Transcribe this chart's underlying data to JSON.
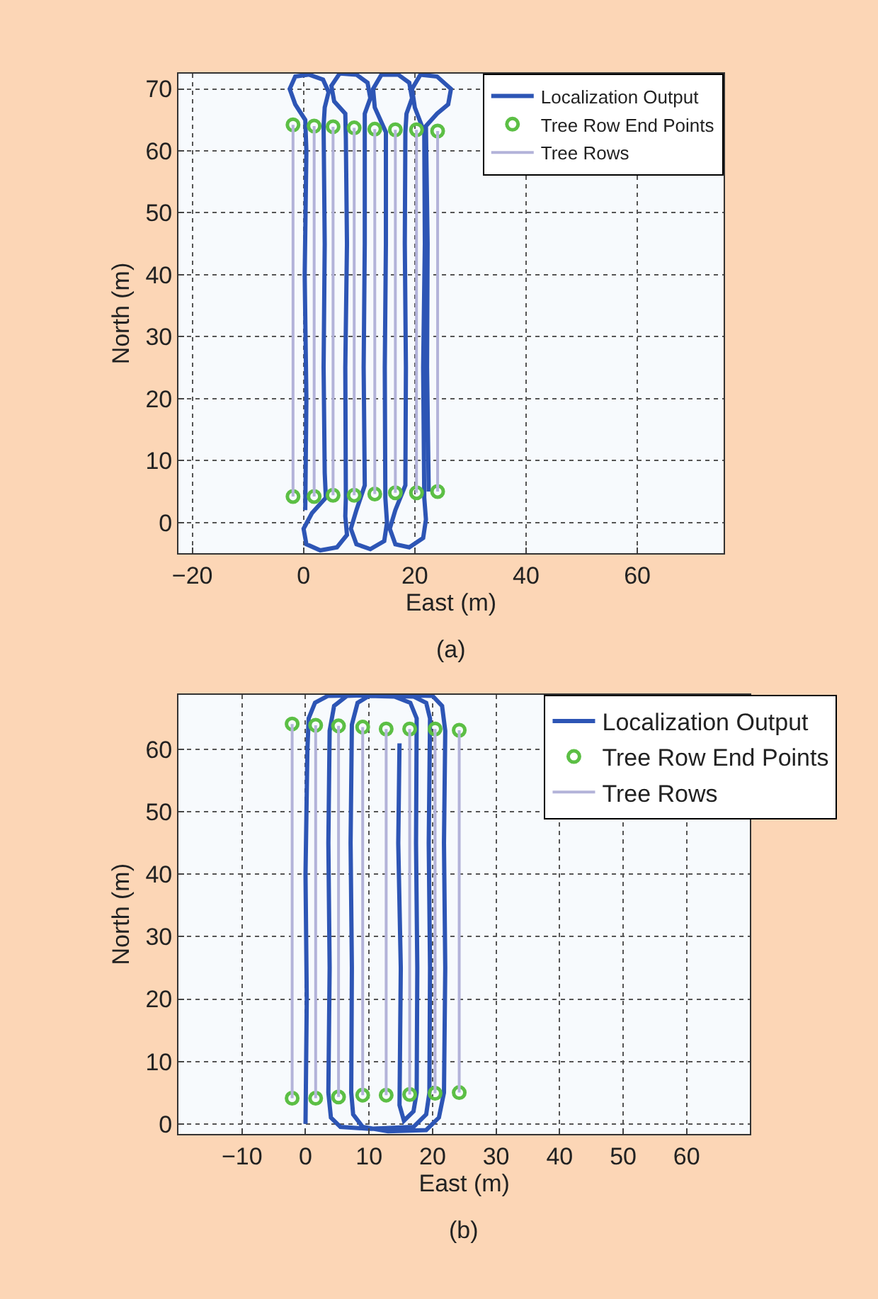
{
  "chart_data": [
    {
      "type": "line",
      "xlabel": "East (m)",
      "ylabel": "North (m)",
      "annotations": [
        "(a)"
      ],
      "xlim": [
        -22.5,
        75.5
      ],
      "ylim": [
        -5,
        72.5
      ],
      "xticks": [
        {
          "value": -20,
          "label": "−20"
        },
        0,
        20,
        40,
        60
      ],
      "yticks": [
        0,
        10,
        20,
        30,
        40,
        50,
        60,
        70
      ],
      "grid": true,
      "legend": "top right",
      "series": [
        {
          "name": "Localization Output",
          "color": "#2d55b5",
          "x": [
            0.3,
            0.5,
            0.2,
            0.5,
            0.3,
            -1.5,
            -2.5,
            -1.5,
            1,
            3.5,
            4.5,
            3.8,
            3.6,
            3.8,
            3.6,
            3.8,
            4,
            1.5,
            0,
            0.5,
            3,
            6,
            7.8,
            7.5,
            7.6,
            7.5,
            7.8,
            7.6,
            7.5,
            5.5,
            5,
            6.5,
            9.5,
            11.5,
            12,
            11,
            11,
            11,
            10.8,
            11,
            9.5,
            8.5,
            9.5,
            12,
            14.5,
            15,
            14.7,
            14.6,
            14.8,
            14.8,
            12.8,
            12.5,
            14,
            17,
            19,
            19.5,
            18.5,
            18.3,
            18.2,
            18.4,
            18.3,
            16.5,
            15.5,
            16.5,
            19,
            21.5,
            22,
            21.7,
            21.5,
            21.8,
            21.7,
            20,
            19.5,
            21,
            24,
            26.5,
            26,
            24,
            22,
            22.3,
            22.2,
            22.5
          ],
          "values": [
            2,
            20,
            40,
            60,
            65,
            67.5,
            70,
            72,
            72.3,
            71.5,
            69.5,
            67,
            64,
            45,
            25,
            8,
            4,
            1.5,
            -1,
            -3.5,
            -4.5,
            -4,
            -2,
            1,
            4,
            25,
            45,
            62,
            66,
            68,
            70.5,
            72.5,
            72.3,
            71,
            68.5,
            66,
            63,
            45,
            25,
            6,
            2,
            -1,
            -3.5,
            -4.3,
            -3,
            0,
            4,
            25,
            45,
            63,
            67,
            70,
            72.3,
            72.3,
            71,
            68.5,
            66,
            63,
            45,
            25,
            6,
            2,
            -1,
            -3.5,
            -4,
            -2.5,
            0.5,
            4,
            25,
            45,
            63,
            67,
            70,
            72.3,
            72,
            70,
            67.5,
            66,
            64,
            45,
            25,
            5
          ]
        },
        {
          "name": "Tree Row End Points",
          "type": "scatter",
          "marker": "circle",
          "color": "#5cbf45",
          "x": [
            -1.9,
            1.9,
            5.3,
            9.1,
            12.8,
            16.5,
            20.3,
            24.1,
            -1.9,
            1.9,
            5.3,
            9.1,
            12.8,
            16.5,
            20.3,
            24.1
          ],
          "values": [
            64.2,
            64.0,
            63.9,
            63.7,
            63.5,
            63.4,
            63.4,
            63.2,
            4.2,
            4.2,
            4.4,
            4.4,
            4.6,
            4.8,
            4.8,
            5.0
          ]
        },
        {
          "name": "Tree Rows",
          "color": "#b3b3d9",
          "x": [
            -1.9,
            -1.9,
            null,
            1.9,
            1.9,
            null,
            5.3,
            5.3,
            null,
            9.1,
            9.1,
            null,
            12.8,
            12.8,
            null,
            16.5,
            16.5,
            null,
            20.3,
            20.3,
            null,
            24.1,
            24.1
          ],
          "values": [
            4.2,
            64.2,
            null,
            4.2,
            64.0,
            null,
            4.4,
            63.9,
            null,
            4.4,
            63.7,
            null,
            4.6,
            63.5,
            null,
            4.8,
            63.4,
            null,
            4.8,
            63.4,
            null,
            5.0,
            63.2
          ]
        }
      ]
    },
    {
      "type": "line",
      "xlabel": "East (m)",
      "ylabel": "North (m)",
      "annotations": [
        "(b)"
      ],
      "xlim": [
        -20,
        70
      ],
      "ylim": [
        -1.6,
        68.8
      ],
      "xticks": [
        {
          "value": -10,
          "label": "−10"
        },
        0,
        10,
        20,
        30,
        40,
        50,
        60
      ],
      "yticks": [
        0,
        10,
        20,
        30,
        40,
        50,
        60
      ],
      "grid": true,
      "legend": "top right",
      "series": [
        {
          "name": "Localization Output",
          "color": "#2d55b5",
          "x": [
            0,
            0.2,
            0,
            0.3,
            0.5,
            1.5,
            3.5,
            10,
            17,
            19,
            19.6,
            19.4,
            19.6,
            19.5,
            19,
            17,
            10,
            5.5,
            4,
            3.6,
            3.8,
            3.6,
            3.8,
            4.5,
            6.5,
            12,
            20,
            21.5,
            22,
            21.8,
            22,
            21.8,
            21,
            19,
            13,
            9,
            7.5,
            7.2,
            7.3,
            7.1,
            7.3,
            8.2,
            10,
            14,
            16.5,
            17.5,
            17.4,
            17.6,
            17.5,
            17,
            15.5,
            14.8,
            15,
            14.6,
            14.8
          ],
          "values": [
            0,
            20,
            40,
            60,
            65,
            67.5,
            68.6,
            68.7,
            68.5,
            67.5,
            65,
            45,
            25,
            5,
            1.5,
            -0.5,
            -0.8,
            -0.5,
            1,
            5,
            25,
            45,
            63,
            67,
            68.6,
            68.8,
            68.6,
            67,
            63,
            45,
            25,
            5,
            1,
            -1,
            -1.2,
            -0.5,
            1.5,
            5,
            25,
            45,
            64,
            67.5,
            68.6,
            68.5,
            67.5,
            65,
            45,
            25,
            5,
            2,
            0.5,
            3,
            25,
            45,
            61
          ]
        },
        {
          "name": "Tree Row End Points",
          "type": "scatter",
          "marker": "circle",
          "color": "#5cbf45",
          "x": [
            -2.1,
            1.6,
            5.2,
            9.0,
            12.7,
            16.4,
            20.4,
            24.2,
            -2.1,
            1.6,
            5.2,
            9.0,
            12.7,
            16.4,
            20.4,
            24.2
          ],
          "values": [
            64.1,
            63.9,
            63.8,
            63.6,
            63.3,
            63.3,
            63.3,
            63.1,
            4.1,
            4.1,
            4.3,
            4.6,
            4.6,
            4.7,
            4.9,
            5.0
          ]
        },
        {
          "name": "Tree Rows",
          "color": "#b3b3d9",
          "x": [
            -2.1,
            -2.1,
            null,
            1.6,
            1.6,
            null,
            5.2,
            5.2,
            null,
            9.0,
            9.0,
            null,
            12.7,
            12.7,
            null,
            16.4,
            16.4,
            null,
            20.4,
            20.4,
            null,
            24.2,
            24.2
          ],
          "values": [
            4.1,
            64.1,
            null,
            4.1,
            63.9,
            null,
            4.3,
            63.8,
            null,
            4.6,
            63.6,
            null,
            4.6,
            63.3,
            null,
            4.7,
            63.3,
            null,
            4.9,
            63.3,
            null,
            5.0,
            63.1
          ]
        }
      ]
    }
  ]
}
